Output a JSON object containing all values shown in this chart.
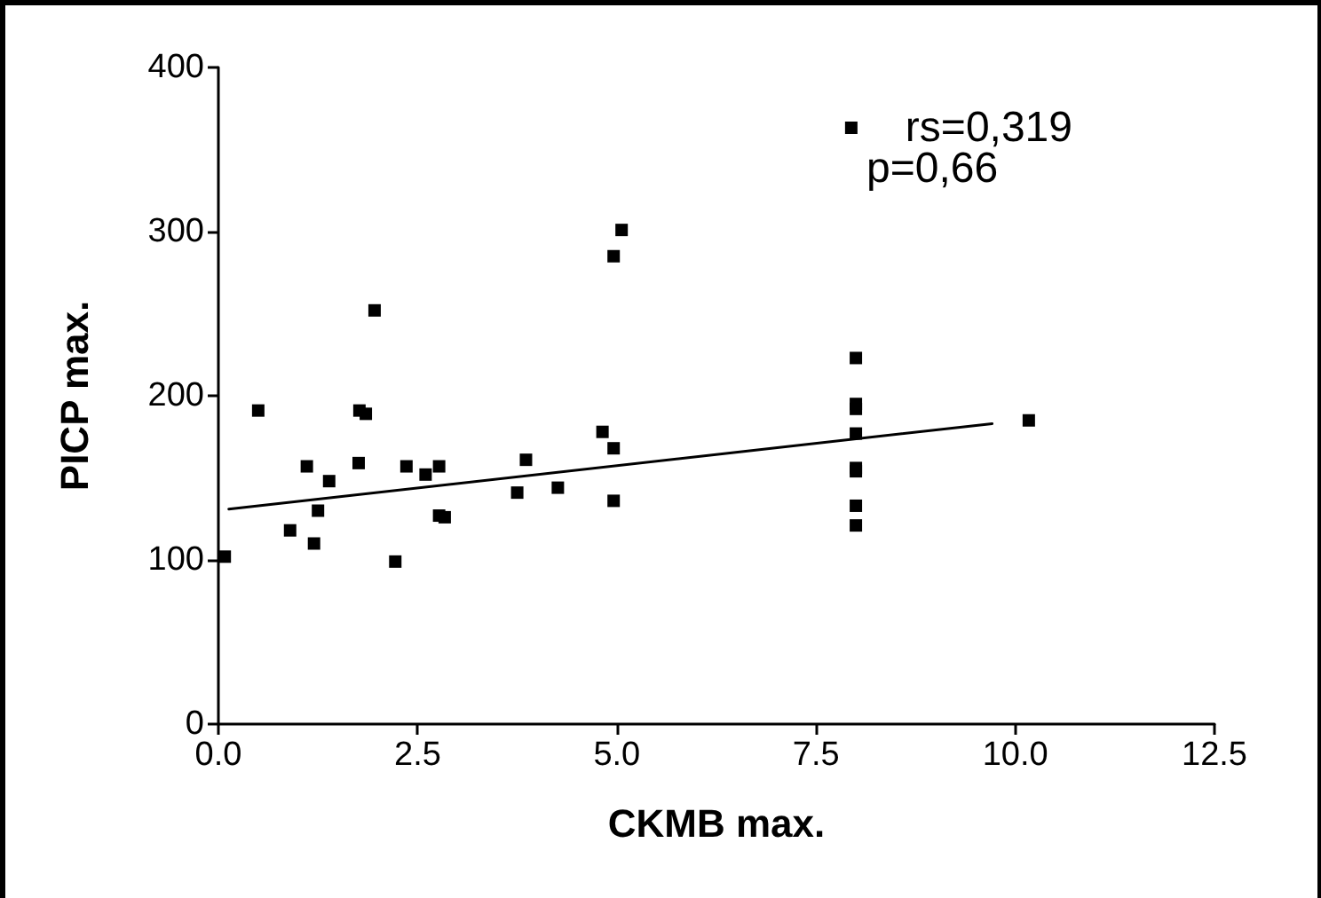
{
  "chart_data": {
    "type": "scatter",
    "xlabel": "CKMB max.",
    "ylabel": "PICP max.",
    "xlim": [
      0,
      12.5
    ],
    "ylim": [
      0,
      400
    ],
    "xticks": [
      {
        "value": 0,
        "label": "0.0"
      },
      {
        "value": 2.5,
        "label": "2.5"
      },
      {
        "value": 5,
        "label": "5.0"
      },
      {
        "value": 7.5,
        "label": "7.5"
      },
      {
        "value": 10,
        "label": "10.0"
      },
      {
        "value": 12.5,
        "label": "12.5"
      }
    ],
    "yticks": [
      0,
      100,
      200,
      300,
      400
    ],
    "grid": false,
    "legend": "top right",
    "marker": "square",
    "annotations": [
      "p=0,66"
    ],
    "series": [
      {
        "name": "rs=0,319",
        "type": "scatter",
        "color": "#000000",
        "x": [
          0.08,
          0.5,
          0.9,
          1.11,
          1.2,
          1.25,
          1.39,
          1.76,
          1.77,
          1.85,
          1.96,
          2.22,
          2.36,
          2.6,
          2.77,
          2.77,
          2.84,
          3.75,
          3.86,
          4.26,
          4.82,
          4.96,
          4.96,
          4.96,
          5.06,
          8,
          8,
          8,
          8,
          8,
          8,
          8,
          8,
          10.17
        ],
        "values": [
          102,
          191,
          118,
          157,
          110,
          130,
          148,
          159,
          191,
          189,
          252,
          99,
          157,
          152,
          157,
          127,
          126,
          141,
          161,
          144,
          178,
          168,
          136,
          285,
          301,
          223,
          195,
          192,
          177,
          156,
          154,
          133,
          121,
          185
        ]
      },
      {
        "type": "line",
        "color": "#000000",
        "marker": "none",
        "line_style": "solid",
        "x": [
          0.13,
          9.71
        ],
        "values": [
          131,
          183
        ]
      }
    ]
  }
}
